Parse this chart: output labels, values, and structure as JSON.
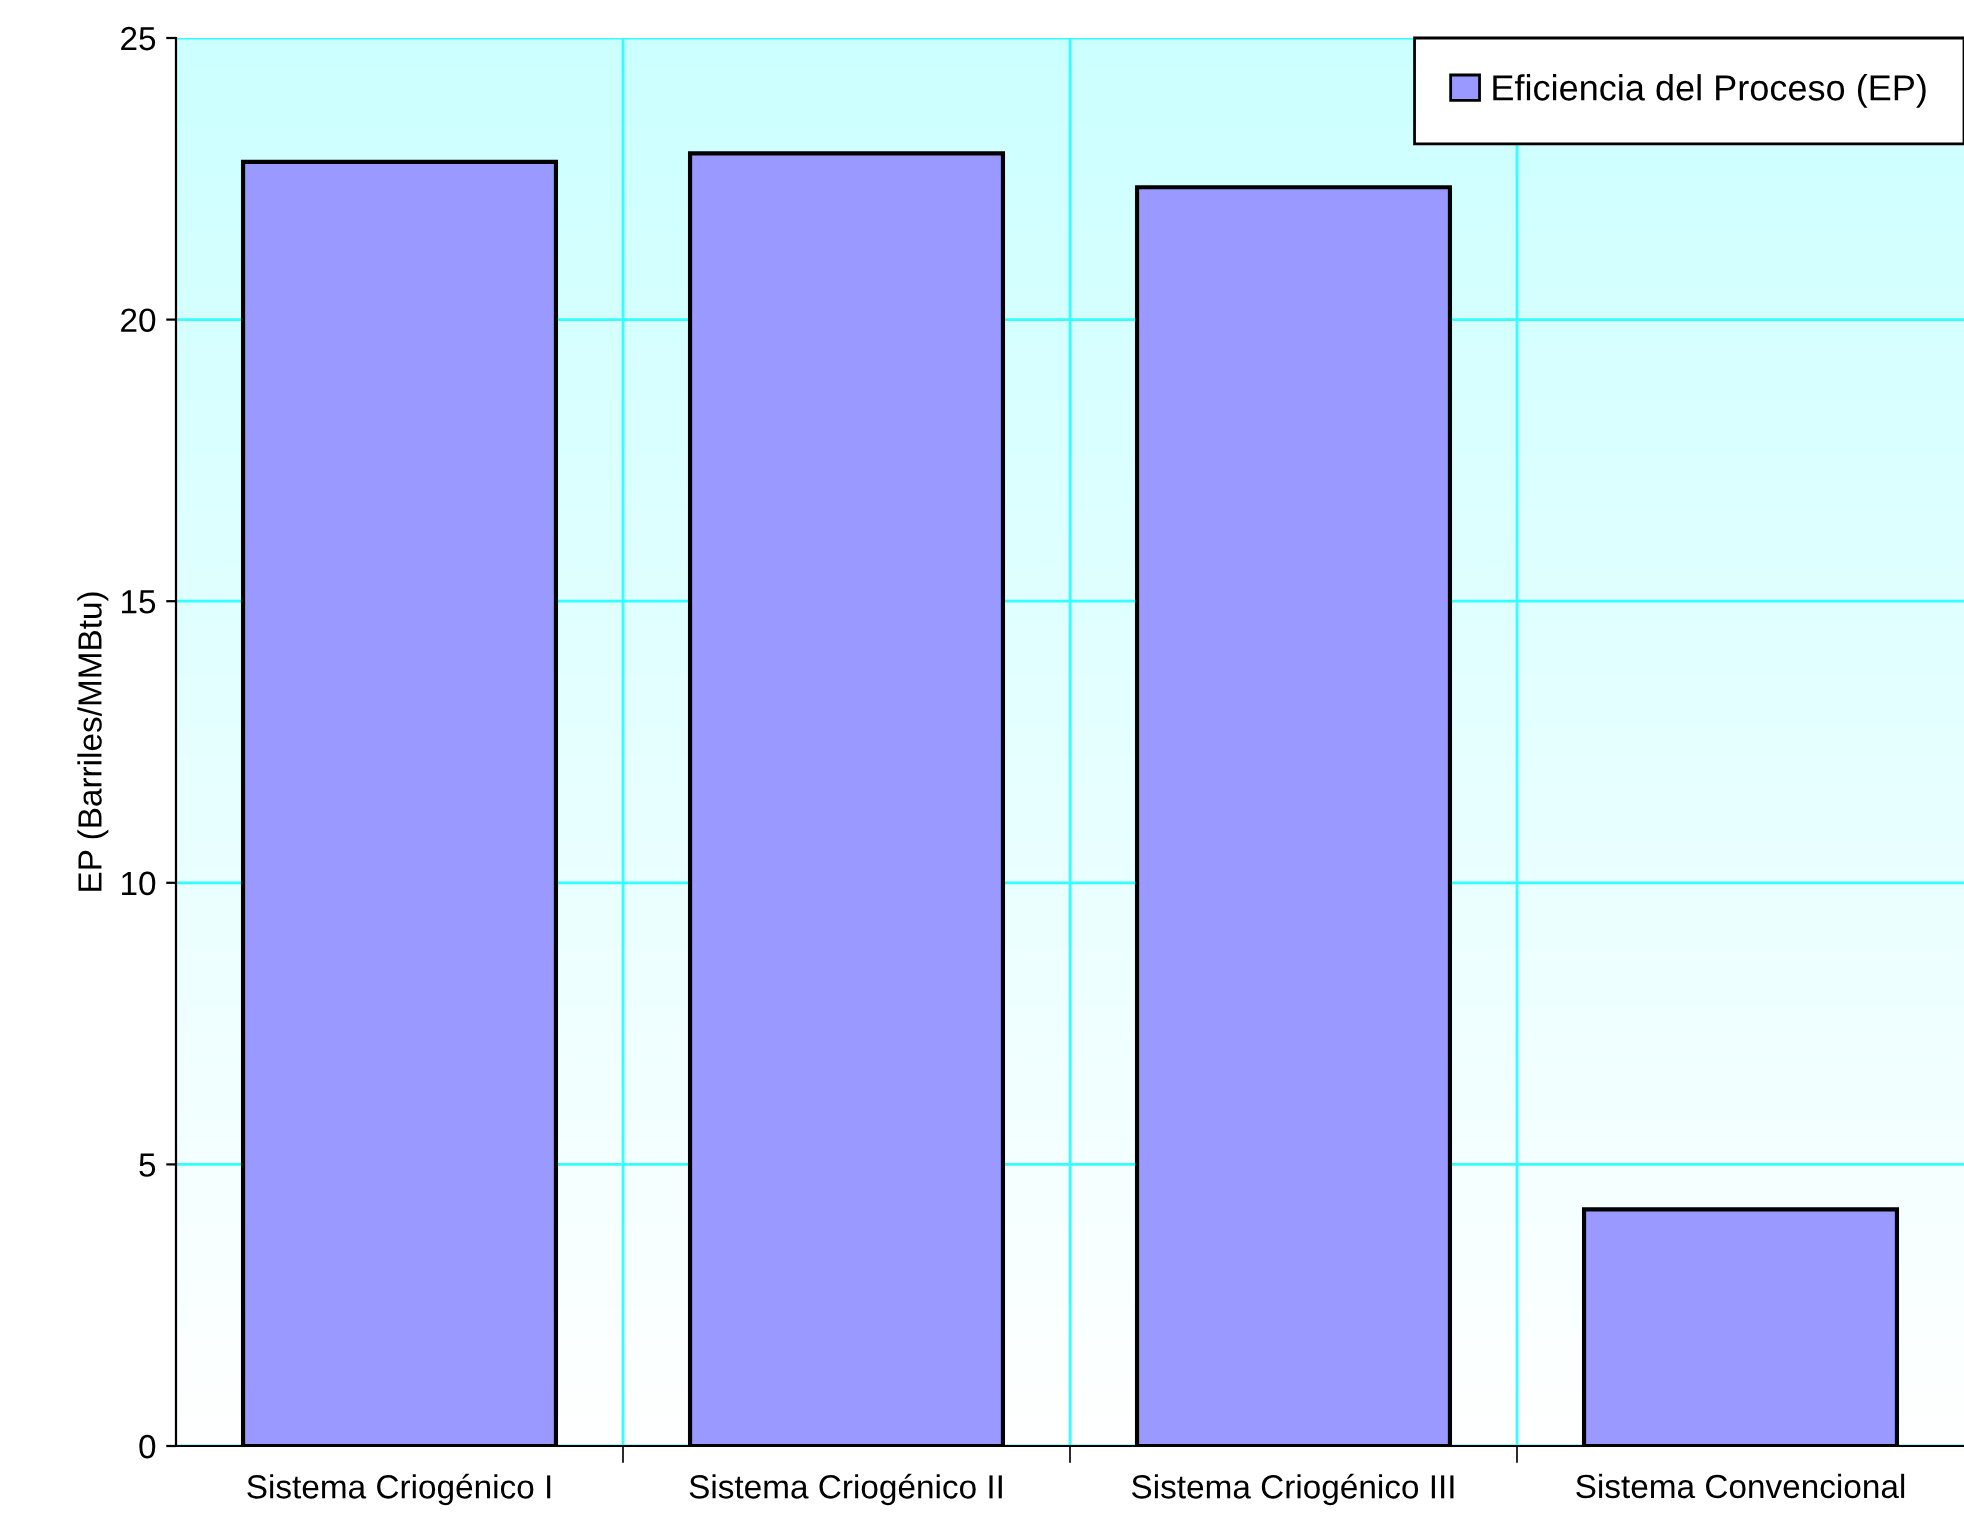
{
  "chart_data": {
    "type": "bar",
    "ylabel": "EP (Barriles/MMBtu)",
    "categories": [
      "Sistema Criogénico I",
      "Sistema Criogénico II",
      "Sistema Criogénico III",
      "Sistema Convencional"
    ],
    "series": [
      {
        "name": "Eficiencia del Proceso (EP)",
        "color": "#9999ff",
        "values": [
          22.8,
          22.95,
          22.35,
          4.2
        ]
      }
    ],
    "ylim": [
      0,
      25
    ],
    "yticks": [
      0,
      5,
      10,
      15,
      20,
      25
    ],
    "grid": true,
    "legend": "top right"
  }
}
